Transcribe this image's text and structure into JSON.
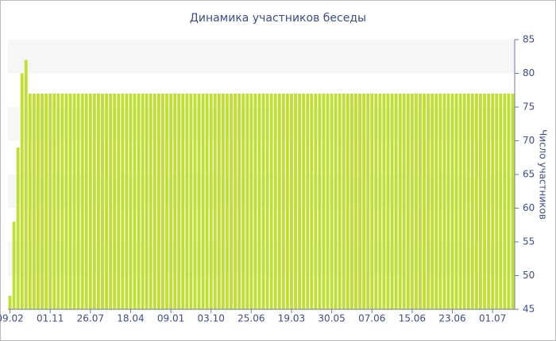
{
  "chart_data": {
    "type": "bar",
    "title": "Динамика участников беседы",
    "y_label": "Число участников",
    "categories": [
      "09.02",
      null,
      null,
      null,
      null,
      null,
      null,
      null,
      null,
      null,
      "01.11",
      null,
      null,
      null,
      null,
      null,
      null,
      null,
      null,
      null,
      "26.07",
      null,
      null,
      null,
      null,
      null,
      null,
      null,
      null,
      null,
      "18.04",
      null,
      null,
      null,
      null,
      null,
      null,
      null,
      null,
      null,
      "09.01",
      null,
      null,
      null,
      null,
      null,
      null,
      null,
      null,
      null,
      "03.10",
      null,
      null,
      null,
      null,
      null,
      null,
      null,
      null,
      null,
      "25.06",
      null,
      null,
      null,
      null,
      null,
      null,
      null,
      null,
      null,
      "19.03",
      null,
      null,
      null,
      null,
      null,
      null,
      null,
      null,
      null,
      "30.05",
      null,
      null,
      null,
      null,
      null,
      null,
      null,
      null,
      null,
      "07.06",
      null,
      null,
      null,
      null,
      null,
      null,
      null,
      null,
      null,
      "15.06",
      null,
      null,
      null,
      null,
      null,
      null,
      null,
      null,
      null,
      "23.06",
      null,
      null,
      null,
      null,
      null,
      null,
      null,
      null,
      null,
      "01.07",
      null,
      null,
      null,
      null,
      null
    ],
    "values": [
      47,
      58,
      69,
      80,
      82,
      77,
      77,
      77,
      77,
      77,
      77,
      77,
      77,
      77,
      77,
      77,
      77,
      77,
      77,
      77,
      77,
      77,
      77,
      77,
      77,
      77,
      77,
      77,
      77,
      77,
      77,
      77,
      77,
      77,
      77,
      77,
      77,
      77,
      77,
      77,
      77,
      77,
      77,
      77,
      77,
      77,
      77,
      77,
      77,
      77,
      77,
      77,
      77,
      77,
      77,
      77,
      77,
      77,
      77,
      77,
      77,
      77,
      77,
      77,
      77,
      77,
      77,
      77,
      77,
      77,
      77,
      77,
      77,
      77,
      77,
      77,
      77,
      77,
      77,
      77,
      77,
      77,
      77,
      77,
      77,
      77,
      77,
      77,
      77,
      77,
      77,
      77,
      77,
      77,
      77,
      77,
      77,
      77,
      77,
      77,
      77,
      77,
      77,
      77,
      77,
      77,
      77,
      77,
      77,
      77,
      77,
      77,
      77,
      77,
      77,
      77,
      77,
      77,
      77,
      77,
      77,
      77,
      77,
      77,
      77,
      77
    ],
    "color": "#bfe032",
    "ylim": [
      45,
      85
    ],
    "yticks": [
      45,
      50,
      55,
      60,
      65,
      70,
      75,
      80,
      85
    ],
    "grid": true
  }
}
